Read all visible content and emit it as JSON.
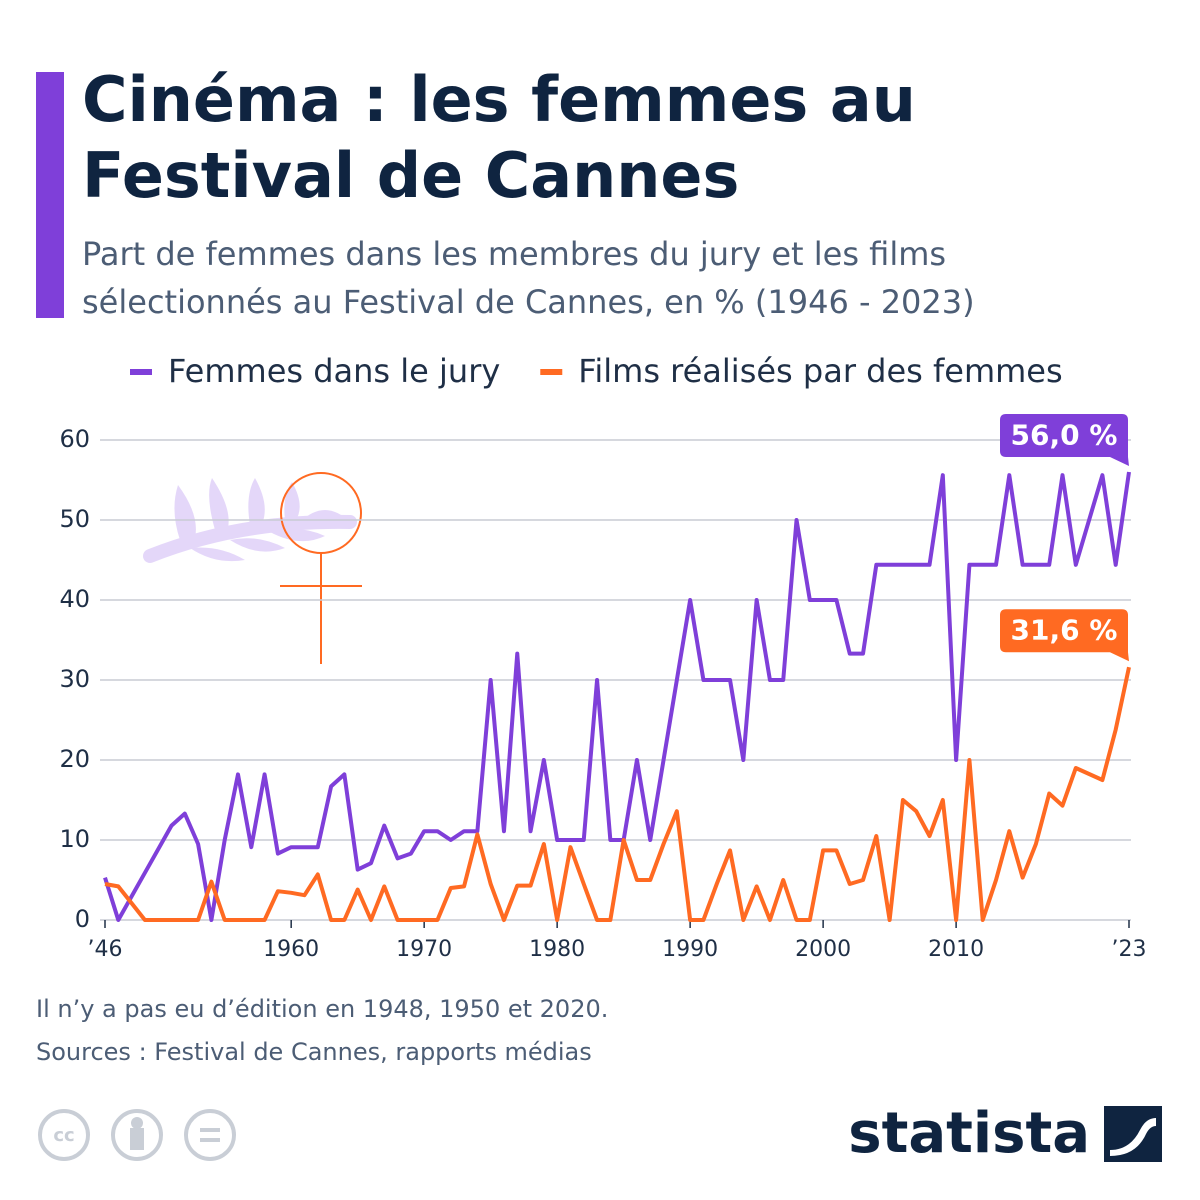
{
  "chart_data": {
    "type": "line",
    "title": [
      "Cinéma : les femmes au",
      "Festival de Cannes"
    ],
    "subtitle": [
      "Part de femmes dans les membres du jury et les films",
      "sélectionnés au Festival de Cannes, en % (1946 - 2023)"
    ],
    "x": [
      1946,
      1947,
      1949,
      1951,
      1952,
      1953,
      1954,
      1955,
      1956,
      1957,
      1958,
      1959,
      1960,
      1961,
      1962,
      1963,
      1964,
      1965,
      1966,
      1967,
      1968,
      1969,
      1970,
      1971,
      1972,
      1973,
      1974,
      1975,
      1976,
      1977,
      1978,
      1979,
      1980,
      1981,
      1982,
      1983,
      1984,
      1985,
      1986,
      1987,
      1988,
      1989,
      1990,
      1991,
      1992,
      1993,
      1994,
      1995,
      1996,
      1997,
      1998,
      1999,
      2000,
      2001,
      2002,
      2003,
      2004,
      2005,
      2006,
      2007,
      2008,
      2009,
      2010,
      2011,
      2012,
      2013,
      2014,
      2015,
      2016,
      2017,
      2018,
      2019,
      2021,
      2022,
      2023
    ],
    "series": [
      {
        "name": "Femmes dans le jury",
        "color": "#7f3fd9",
        "end_label": "56,0 %",
        "values": [
          5.3,
          0,
          5.9,
          11.8,
          13.3,
          9.5,
          0,
          10,
          18.2,
          9.1,
          18.2,
          8.3,
          9.1,
          9.1,
          9.1,
          16.7,
          18.2,
          6.3,
          7.1,
          11.8,
          7.7,
          8.3,
          11.1,
          11.1,
          10,
          11.1,
          11.1,
          30,
          11.1,
          33.3,
          11.1,
          20,
          10,
          10,
          10,
          30,
          10,
          10,
          20,
          10,
          20,
          30,
          40,
          30,
          30,
          30,
          20,
          40,
          30,
          30,
          50,
          40,
          40,
          40,
          33.3,
          33.3,
          44.4,
          44.4,
          44.4,
          44.4,
          44.4,
          55.6,
          20,
          44.4,
          44.4,
          44.4,
          55.6,
          44.4,
          44.4,
          44.4,
          55.6,
          44.4,
          55.6,
          44.4,
          56
        ]
      },
      {
        "name": "Films réalisés par des femmes",
        "color": "#ff6a22",
        "end_label": "31,6 %",
        "values": [
          4.5,
          4.2,
          0,
          0,
          0,
          0,
          4.8,
          0,
          0,
          0,
          0,
          3.6,
          3.4,
          3.1,
          5.7,
          0,
          0,
          3.8,
          0,
          4.2,
          0,
          0,
          0,
          0,
          4,
          4.2,
          10.7,
          4.5,
          0,
          4.3,
          4.3,
          9.5,
          0,
          9.1,
          4.5,
          0,
          0,
          10,
          5,
          5,
          9.5,
          13.6,
          0,
          0,
          4.5,
          8.7,
          0,
          4.2,
          0,
          5,
          0,
          0,
          8.7,
          8.7,
          4.5,
          5,
          10.5,
          0,
          15,
          13.6,
          10.5,
          15,
          0,
          20,
          0,
          5,
          11.1,
          5.3,
          9.5,
          15.8,
          14.3,
          19,
          17.5,
          23.8,
          31.6
        ]
      }
    ],
    "xlim": [
      1946,
      2023
    ],
    "xticks": [
      {
        "value": 1946,
        "label": "’46"
      },
      1960,
      1970,
      1980,
      1990,
      2000,
      2010,
      {
        "value": 2023,
        "label": "’23"
      }
    ],
    "ylim": [
      0,
      60
    ],
    "yticks": [
      0,
      10,
      20,
      30,
      40,
      50,
      60
    ],
    "grid": true,
    "notes": [
      "Il n’y a pas eu d’édition en 1948, 1950 et 2020.",
      "Sources : Festival de Cannes, rapports médias"
    ],
    "brand": "statista"
  }
}
